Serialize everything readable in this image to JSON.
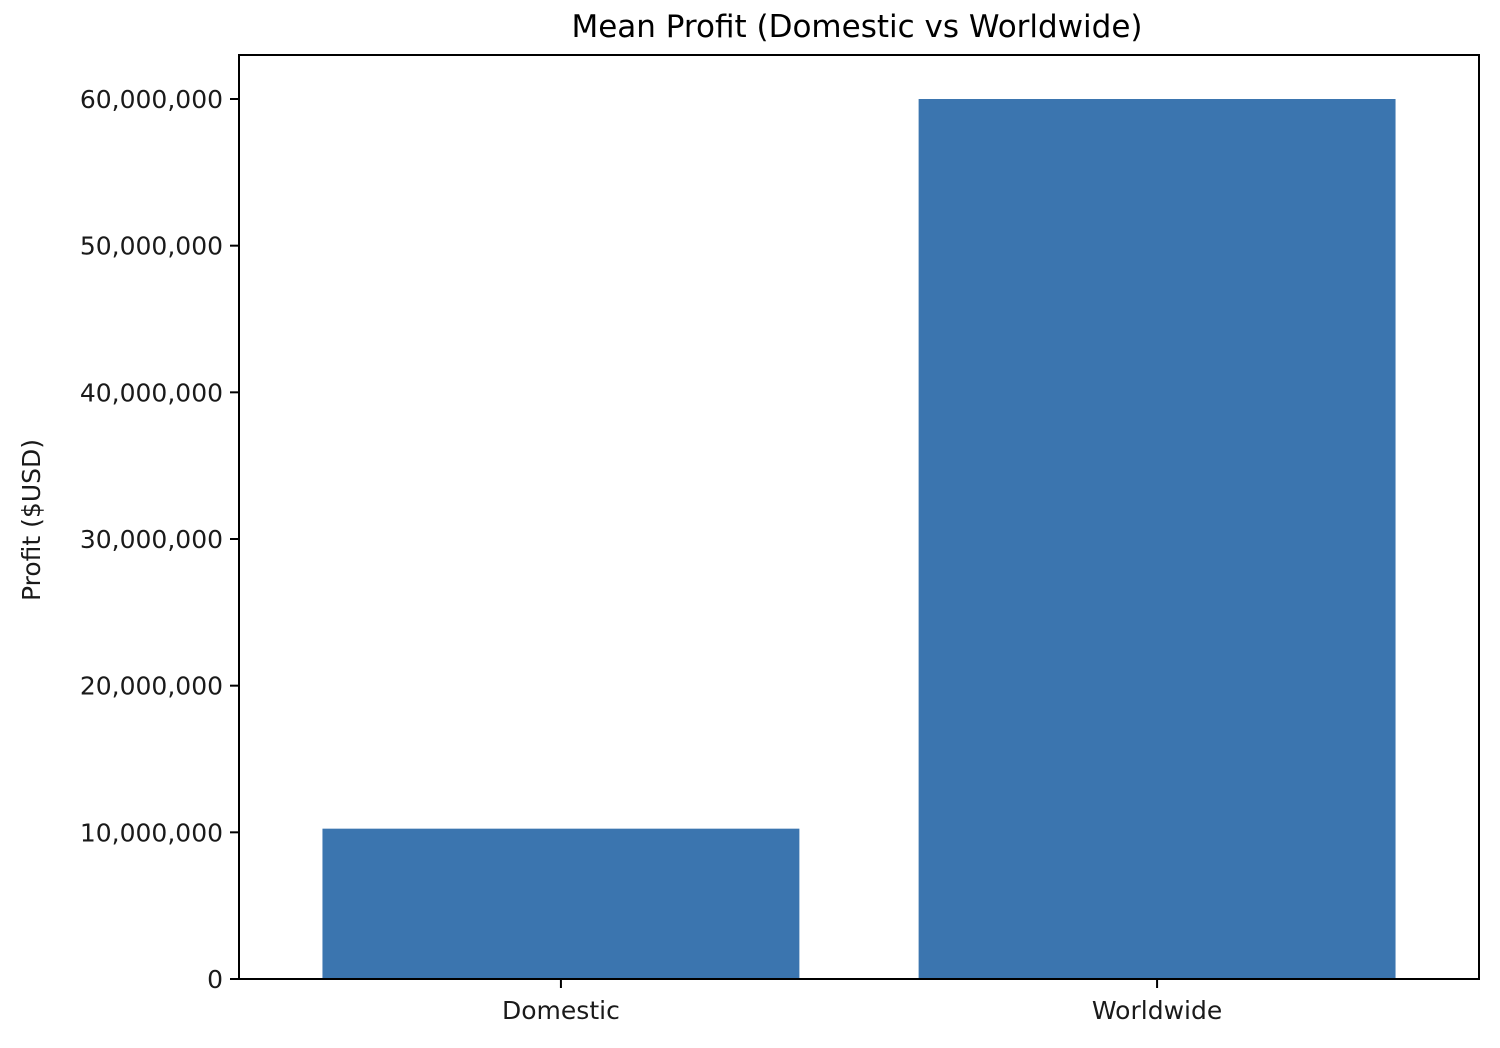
{
  "chart_data": {
    "type": "bar",
    "title": "Mean Profit (Domestic vs Worldwide)",
    "xlabel": "",
    "ylabel": "Profit ($USD)",
    "categories": [
      "Domestic",
      "Worldwide"
    ],
    "values": [
      10250000,
      60000000
    ],
    "ylim": [
      0,
      63000000
    ],
    "yticks": [
      0,
      10000000,
      20000000,
      30000000,
      40000000,
      50000000,
      60000000
    ],
    "ytick_labels": [
      "0",
      "10,000,000",
      "20,000,000",
      "30,000,000",
      "40,000,000",
      "50,000,000",
      "60,000,000"
    ],
    "bar_color": "#3b75af",
    "grid": false,
    "legend": "none"
  }
}
